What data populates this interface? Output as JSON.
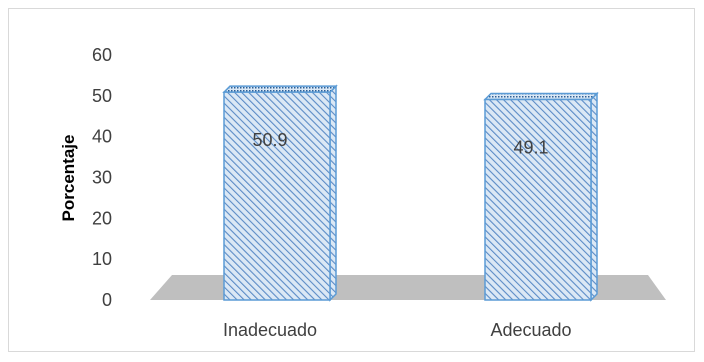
{
  "chart_data": {
    "type": "bar",
    "title": "",
    "xlabel": "",
    "ylabel": "Porcentaje",
    "categories": [
      "Inadecuado",
      "Adecuado"
    ],
    "values": [
      50.9,
      49.1
    ],
    "data_labels": [
      "50.9",
      "49.1"
    ],
    "ylim": [
      0,
      60
    ],
    "yticks": [
      "0",
      "10",
      "20",
      "30",
      "40",
      "50",
      "60"
    ],
    "grid": false,
    "legend": "none",
    "style": "3d-column-hatched",
    "colors": {
      "bar_fill": "#dbe8f5",
      "bar_hatch": "#5b8bc6",
      "bar_edge": "#5b9bd5",
      "floor": "#bfbfbf",
      "text": "#404040"
    }
  }
}
